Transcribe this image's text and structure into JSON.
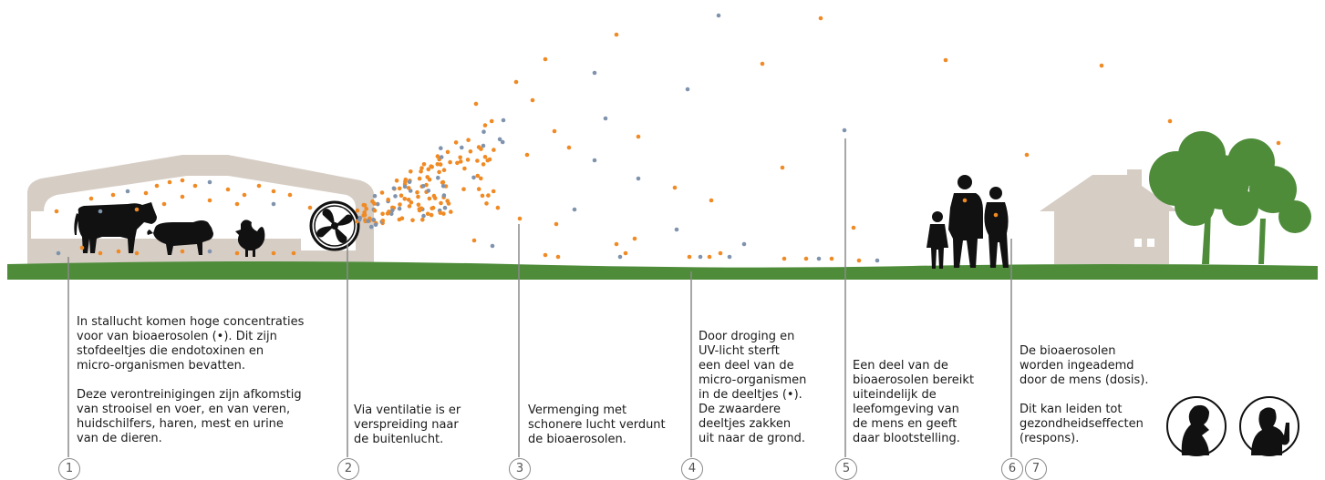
{
  "colors": {
    "orange_particle": "#f08a24",
    "blue_particle": "#7f93ad",
    "ground": "#4e8c3a",
    "barn": "#d6cdc5",
    "house": "#d6cdc5",
    "tree": "#4e8c3a",
    "silhouette": "#111111"
  },
  "steps": [
    {
      "number": "1",
      "text": "In stallucht komen hoge concentraties\nvoor van bioaerosolen (•). Dit zijn\nstofdeeltjes die endotoxinen en\nmicro-organismen bevatten.\n\nDeze verontreinigingen zijn afkomstig\nvan strooisel en voer, en van veren,\nhuidschilfers, haren, mest en urine\nvan de dieren."
    },
    {
      "number": "2",
      "text": "Via ventilatie is er\nverspreiding naar\nde buitenlucht."
    },
    {
      "number": "3",
      "text": "Vermenging met\nschonere lucht verdunt\nde bioaerosolen."
    },
    {
      "number": "4",
      "text": "Door droging en\nUV-licht sterft\neen deel van de\nmicro-organismen\nin de deeltjes (•).\nDe zwaardere\ndeeltjes zakken\nuit naar de grond."
    },
    {
      "number": "5",
      "text": "Een deel van de\nbioaerosolen bereikt\nuiteindelijk de\nleefomgeving van\nde mens en geeft\ndaar blootstelling."
    },
    {
      "number": "6",
      "text": ""
    },
    {
      "number": "7",
      "text": "De bioaerosolen\nworden ingeademd\ndoor de mens (dosis).\n\nDit kan leiden tot\ngezondheidseffecten\n(respons)."
    }
  ],
  "icons": [
    "barn-icon",
    "cow-icon",
    "pig-icon",
    "chicken-icon",
    "fan-icon",
    "family-icon",
    "house-icon",
    "tree-icon",
    "person-coughing-icon",
    "person-sick-icon"
  ]
}
